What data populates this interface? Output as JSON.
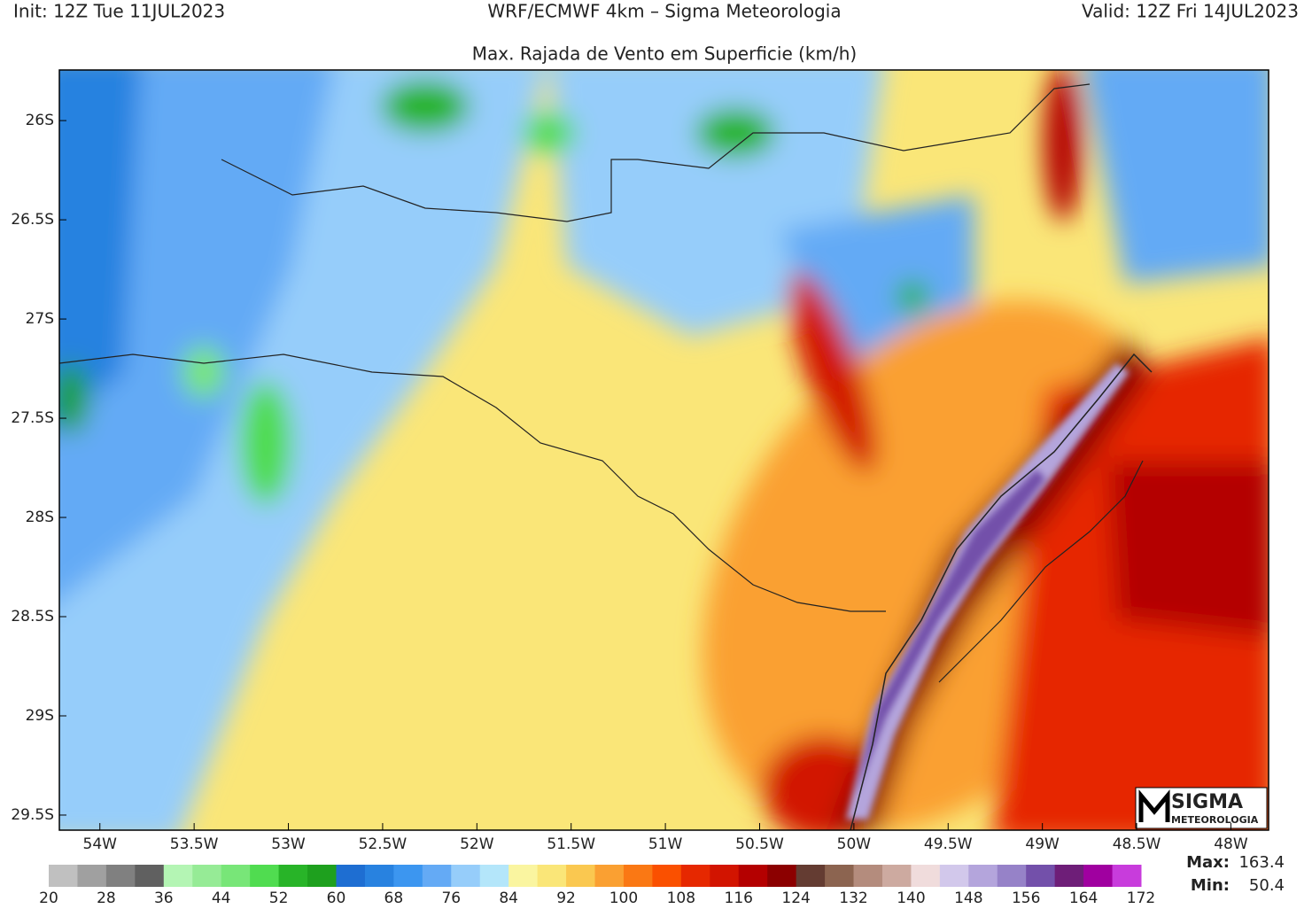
{
  "header": {
    "init": "Init: 12Z Tue 11JUL2023",
    "model": "WRF/ECMWF 4km – Sigma Meteorologia",
    "valid": "Valid: 12Z Fri 14JUL2023",
    "title": "Max. Rajada de Vento em Superficie (km/h)"
  },
  "map": {
    "xlim": [
      -54.215,
      -47.8
    ],
    "ylim": [
      -29.576,
      -25.745
    ],
    "xticks": [
      {
        "value": -54,
        "label": "54W"
      },
      {
        "value": -53.5,
        "label": "53.5W"
      },
      {
        "value": -53,
        "label": "53W"
      },
      {
        "value": -52.5,
        "label": "52.5W"
      },
      {
        "value": -52,
        "label": "52W"
      },
      {
        "value": -51.5,
        "label": "51.5W"
      },
      {
        "value": -51,
        "label": "51W"
      },
      {
        "value": -50.5,
        "label": "50.5W"
      },
      {
        "value": -50,
        "label": "50W"
      },
      {
        "value": -49.5,
        "label": "49.5W"
      },
      {
        "value": -49,
        "label": "49W"
      },
      {
        "value": -48.5,
        "label": "48.5W"
      },
      {
        "value": -48,
        "label": "48W"
      }
    ],
    "yticks": [
      {
        "value": -26,
        "label": "26S"
      },
      {
        "value": -26.5,
        "label": "26.5S"
      },
      {
        "value": -27,
        "label": "27S"
      },
      {
        "value": -27.5,
        "label": "27.5S"
      },
      {
        "value": -28,
        "label": "28S"
      },
      {
        "value": -28.5,
        "label": "28.5S"
      },
      {
        "value": -29,
        "label": "29S"
      },
      {
        "value": -29.5,
        "label": "29.5S"
      }
    ]
  },
  "colorbar": {
    "ticks": [
      20,
      28,
      36,
      44,
      52,
      60,
      68,
      76,
      84,
      92,
      100,
      108,
      116,
      124,
      132,
      140,
      148,
      156,
      164,
      172
    ],
    "colors": [
      "#c0c0c0",
      "#a0a0a0",
      "#808080",
      "#606060",
      "#b4f5b4",
      "#96eb96",
      "#78e678",
      "#50dc50",
      "#28b428",
      "#1ea01e",
      "#1e6ed2",
      "#2882e0",
      "#3c96f0",
      "#64aaf5",
      "#96cdfa",
      "#b4e6fa",
      "#faf5a0",
      "#fae678",
      "#fac850",
      "#faa032",
      "#fa7814",
      "#fa5000",
      "#e62800",
      "#d21400",
      "#b40000",
      "#8c0000",
      "#643c32",
      "#8c6450",
      "#b48c7d",
      "#cdaaa0",
      "#f0dcdc",
      "#d2c8eb",
      "#b4a5dc",
      "#9682c8",
      "#7350aa",
      "#6e1e78",
      "#a000a0",
      "#c83cdc"
    ]
  },
  "stats": {
    "max_label": "Max:",
    "max": 163.4,
    "min_label": "Min:",
    "min": 50.4
  },
  "logo": {
    "name": "SIGMA",
    "sub": "METEOROLOGIA"
  }
}
